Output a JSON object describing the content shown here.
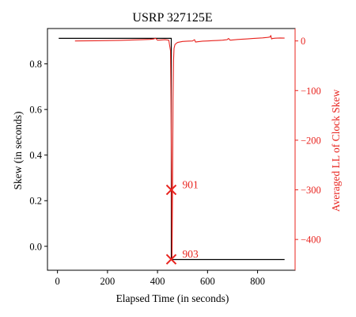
{
  "chart_data": {
    "type": "line",
    "title": "USRP 327125E",
    "xlabel": "Elapsed Time (in seconds)",
    "ylabel": "Skew (in seconds)",
    "y2label": "Averaged LL of Clock Skew",
    "xlim": [
      -40,
      950
    ],
    "ylim": [
      -0.105,
      0.955
    ],
    "y2lim": [
      -462,
      25
    ],
    "x_ticks": [
      0,
      200,
      400,
      600,
      800
    ],
    "y_ticks": [
      0.0,
      0.2,
      0.4,
      0.6,
      0.8
    ],
    "y2_ticks": [
      0,
      -100,
      -200,
      -300,
      -400
    ],
    "grid": false,
    "series": [
      {
        "axis": "left",
        "color": "#000000",
        "x": [
          5,
          455,
          455.1,
          908
        ],
        "y": [
          0.912,
          0.912,
          -0.058,
          -0.058
        ]
      },
      {
        "axis": "right",
        "color": "#e8231e",
        "x": [
          70,
          100,
          150,
          200,
          250,
          300,
          340,
          370,
          385,
          392,
          400,
          415,
          430,
          445,
          452,
          454,
          456,
          458,
          460,
          462,
          464,
          466,
          470,
          480,
          500,
          520,
          540,
          548,
          552,
          560,
          580,
          600,
          620,
          640,
          660,
          678,
          684,
          690,
          700,
          720,
          740,
          760,
          780,
          800,
          820,
          840,
          850,
          853,
          856,
          860,
          870,
          890,
          908
        ],
        "y": [
          0,
          0.2,
          0.3,
          0.8,
          1.2,
          1.9,
          2.5,
          3.2,
          4,
          5.5,
          1.5,
          2,
          2.5,
          1.5,
          -20,
          -120,
          -270,
          -440,
          -300,
          -120,
          -40,
          -15,
          -7,
          -3,
          -1,
          -0.5,
          0,
          2.5,
          -2.2,
          -1.6,
          -0.5,
          0,
          0.5,
          1,
          1.6,
          2.5,
          5,
          1.6,
          2,
          3,
          3.6,
          4.2,
          5,
          5.5,
          6.2,
          7.2,
          8,
          11,
          4,
          5,
          5.5,
          6,
          5.8
        ]
      }
    ],
    "annotations": [
      {
        "text": "901",
        "x": 455,
        "y2": -300
      },
      {
        "text": "903",
        "x": 455,
        "y2": -440
      }
    ]
  }
}
